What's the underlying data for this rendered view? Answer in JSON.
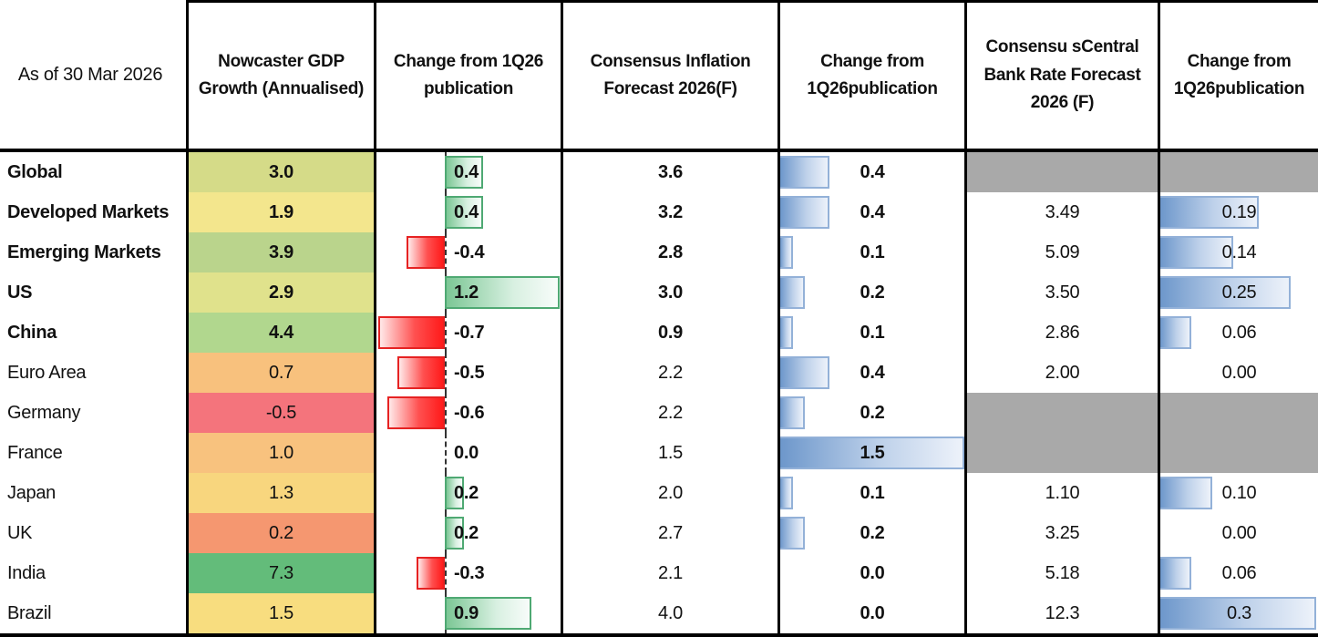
{
  "header": {
    "as_of": "As of 30 Mar 2026",
    "cols": [
      "Nowcaster GDP Growth (Annualised)",
      "Change from 1Q26 publication",
      "Consensus Inflation Forecast 2026(F)",
      "Change from 1Q26publication",
      "Consensu sCentral Bank Rate Forecast 2026 (F)",
      "Change from 1Q26publication"
    ]
  },
  "palette": {
    "positive_bar_green": "#4fa973",
    "negative_bar_red": "#ff1a1a",
    "change_bar_blue": "#6d97cb",
    "na_gray": "#a9a9a9",
    "grid_black": "#000000"
  },
  "rows": [
    {
      "label": "Global",
      "emphasis": true,
      "gdp": {
        "text": "3.0",
        "bg": "#d5db88"
      },
      "gdp_change": {
        "text": "0.4",
        "value": 0.4
      },
      "inflation": "3.6",
      "inflation_change": {
        "text": "0.4",
        "value": 0.4
      },
      "cb_rate": {
        "na": true
      },
      "cb_change": {
        "na": true
      }
    },
    {
      "label": "Developed Markets",
      "emphasis": true,
      "gdp": {
        "text": "1.9",
        "bg": "#f3e68d"
      },
      "gdp_change": {
        "text": "0.4",
        "value": 0.4
      },
      "inflation": "3.2",
      "inflation_change": {
        "text": "0.4",
        "value": 0.4
      },
      "cb_rate": {
        "text": "3.49"
      },
      "cb_change": {
        "text": "0.19",
        "value": 0.19
      }
    },
    {
      "label": "Emerging Markets",
      "emphasis": true,
      "gdp": {
        "text": "3.9",
        "bg": "#bad48c"
      },
      "gdp_change": {
        "text": "-0.4",
        "value": -0.4
      },
      "inflation": "2.8",
      "inflation_change": {
        "text": "0.1",
        "value": 0.1
      },
      "cb_rate": {
        "text": "5.09"
      },
      "cb_change": {
        "text": "0.14",
        "value": 0.14
      }
    },
    {
      "label": "US",
      "emphasis": true,
      "gdp": {
        "text": "2.9",
        "bg": "#e0e28c"
      },
      "gdp_change": {
        "text": "1.2",
        "value": 1.2
      },
      "inflation": "3.0",
      "inflation_change": {
        "text": "0.2",
        "value": 0.2
      },
      "cb_rate": {
        "text": "3.50"
      },
      "cb_change": {
        "text": "0.25",
        "value": 0.25
      }
    },
    {
      "label": "China",
      "emphasis": true,
      "gdp": {
        "text": "4.4",
        "bg": "#b1d78e"
      },
      "gdp_change": {
        "text": "-0.7",
        "value": -0.7
      },
      "inflation": "0.9",
      "inflation_change": {
        "text": "0.1",
        "value": 0.1
      },
      "cb_rate": {
        "text": "2.86"
      },
      "cb_change": {
        "text": "0.06",
        "value": 0.06
      }
    },
    {
      "label": "Euro Area",
      "emphasis": false,
      "gdp": {
        "text": "0.7",
        "bg": "#f8c17d"
      },
      "gdp_change": {
        "text": "-0.5",
        "value": -0.5
      },
      "inflation": "2.2",
      "inflation_change": {
        "text": "0.4",
        "value": 0.4
      },
      "cb_rate": {
        "text": "2.00"
      },
      "cb_change": {
        "text": "0.00",
        "value": 0.0
      }
    },
    {
      "label": "Germany",
      "emphasis": false,
      "gdp": {
        "text": "-0.5",
        "bg": "#f4747c"
      },
      "gdp_change": {
        "text": "-0.6",
        "value": -0.6
      },
      "inflation": "2.2",
      "inflation_change": {
        "text": "0.2",
        "value": 0.2
      },
      "cb_rate": {
        "na": true
      },
      "cb_change": {
        "na": true
      }
    },
    {
      "label": "France",
      "emphasis": false,
      "gdp": {
        "text": "1.0",
        "bg": "#f8c27e"
      },
      "gdp_change": {
        "text": "0.0",
        "value": 0.0
      },
      "inflation": "1.5",
      "inflation_change": {
        "text": "1.5",
        "value": 1.5
      },
      "cb_rate": {
        "na": true
      },
      "cb_change": {
        "na": true
      }
    },
    {
      "label": "Japan",
      "emphasis": false,
      "gdp": {
        "text": "1.3",
        "bg": "#f8d67e"
      },
      "gdp_change": {
        "text": "0.2",
        "value": 0.2
      },
      "inflation": "2.0",
      "inflation_change": {
        "text": "0.1",
        "value": 0.1
      },
      "cb_rate": {
        "text": "1.10"
      },
      "cb_change": {
        "text": "0.10",
        "value": 0.1
      }
    },
    {
      "label": "UK",
      "emphasis": false,
      "gdp": {
        "text": "0.2",
        "bg": "#f59770"
      },
      "gdp_change": {
        "text": "0.2",
        "value": 0.2
      },
      "inflation": "2.7",
      "inflation_change": {
        "text": "0.2",
        "value": 0.2
      },
      "cb_rate": {
        "text": "3.25"
      },
      "cb_change": {
        "text": "0.00",
        "value": 0.0
      }
    },
    {
      "label": "India",
      "emphasis": false,
      "gdp": {
        "text": "7.3",
        "bg": "#63bc7a"
      },
      "gdp_change": {
        "text": "-0.3",
        "value": -0.3
      },
      "inflation": "2.1",
      "inflation_change": {
        "text": "0.0",
        "value": 0.0
      },
      "cb_rate": {
        "text": "5.18"
      },
      "cb_change": {
        "text": "0.06",
        "value": 0.06
      }
    },
    {
      "label": "Brazil",
      "emphasis": false,
      "gdp": {
        "text": "1.5",
        "bg": "#f8dd7f"
      },
      "gdp_change": {
        "text": "0.9",
        "value": 0.9
      },
      "inflation": "4.0",
      "inflation_change": {
        "text": "0.0",
        "value": 0.0
      },
      "cb_rate": {
        "text": "12.3"
      },
      "cb_change": {
        "text": "0.3",
        "value": 0.3
      }
    }
  ],
  "chart_data": {
    "type": "table",
    "title": "As of 30 Mar 2026",
    "columns": [
      "As of 30 Mar 2026",
      "Nowcaster GDP Growth (Annualised)",
      "Change from 1Q26 publication",
      "Consensus Inflation Forecast 2026(F)",
      "Change from 1Q26publication",
      "Consensu sCentral Bank Rate Forecast 2026 (F)",
      "Change from 1Q26publication"
    ],
    "rows": [
      [
        "Global",
        3.0,
        0.4,
        3.6,
        0.4,
        null,
        null
      ],
      [
        "Developed Markets",
        1.9,
        0.4,
        3.2,
        0.4,
        3.49,
        0.19
      ],
      [
        "Emerging Markets",
        3.9,
        -0.4,
        2.8,
        0.1,
        5.09,
        0.14
      ],
      [
        "US",
        2.9,
        1.2,
        3.0,
        0.2,
        3.5,
        0.25
      ],
      [
        "China",
        4.4,
        -0.7,
        0.9,
        0.1,
        2.86,
        0.06
      ],
      [
        "Euro Area",
        0.7,
        -0.5,
        2.2,
        0.4,
        2.0,
        0.0
      ],
      [
        "Germany",
        -0.5,
        -0.6,
        2.2,
        0.2,
        null,
        null
      ],
      [
        "France",
        1.0,
        0.0,
        1.5,
        1.5,
        null,
        null
      ],
      [
        "Japan",
        1.3,
        0.2,
        2.0,
        0.1,
        1.1,
        0.1
      ],
      [
        "UK",
        0.2,
        0.2,
        2.7,
        0.2,
        3.25,
        0.0
      ],
      [
        "India",
        7.3,
        -0.3,
        2.1,
        0.0,
        5.18,
        0.06
      ],
      [
        "Brazil",
        1.5,
        0.9,
        4.0,
        0.0,
        12.3,
        0.3
      ]
    ],
    "notes": "Heatmap colors on GDP column; diverging red/green bars for GDP change; blue left-anchored bars for inflation and central-bank-rate changes; gray cells = not available"
  }
}
